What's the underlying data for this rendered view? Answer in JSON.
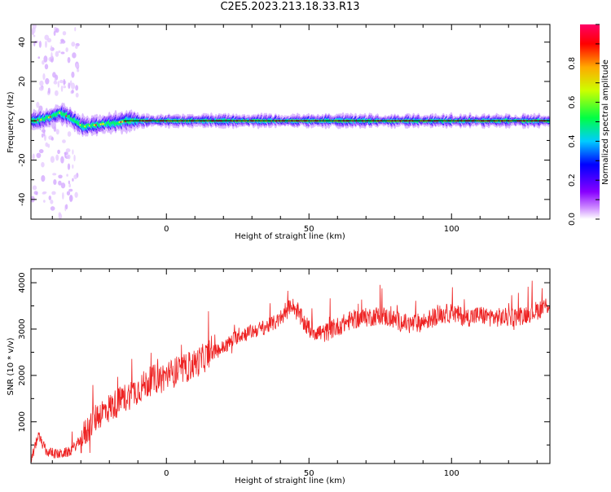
{
  "title": "C2E5.2023.213.18.33.R13",
  "chart_data": [
    {
      "type": "heatmap",
      "xlabel": "Height of straight line (km)",
      "ylabel": "Frequency (Hz)",
      "xlim": [
        -47.5,
        134.5
      ],
      "ylim": [
        -50,
        49
      ],
      "xticks": [
        0,
        50,
        100
      ],
      "yticks": [
        -40,
        -20,
        0,
        20,
        40
      ],
      "grid": false,
      "colorbar": {
        "label": "Normalized spectral amplitude",
        "range": [
          0,
          1
        ],
        "ticks": [
          0.0,
          0.2,
          0.4,
          0.6,
          0.8
        ],
        "colormap": [
          "#ffffff",
          "#8800ff",
          "#0000ff",
          "#00ffff",
          "#00ff00",
          "#ffff00",
          "#ff0000",
          "#ff0080"
        ]
      },
      "ridge": {
        "frequency_hz": 0,
        "wander": [
          {
            "x": -46,
            "y": 0
          },
          {
            "x": -42,
            "y": 1
          },
          {
            "x": -37,
            "y": 4
          },
          {
            "x": -33,
            "y": 1
          },
          {
            "x": -29,
            "y": -3
          },
          {
            "x": -24,
            "y": -2
          },
          {
            "x": -18,
            "y": -1
          },
          {
            "x": -12,
            "y": 0
          },
          {
            "x": 0,
            "y": 0
          },
          {
            "x": 134,
            "y": 0
          }
        ]
      }
    },
    {
      "type": "line",
      "xlabel": "Height of straight line (km)",
      "ylabel": "SNR (10 * v/v)",
      "xlim": [
        -47.5,
        134.5
      ],
      "ylim": [
        100,
        4300
      ],
      "xticks": [
        0,
        50,
        100
      ],
      "yticks": [
        1000,
        2000,
        3000,
        4000
      ],
      "grid": false,
      "series": [
        {
          "color": "#ee2222",
          "points": [
            {
              "x": -47.5,
              "y": 150
            },
            {
              "x": -45,
              "y": 700
            },
            {
              "x": -42,
              "y": 350
            },
            {
              "x": -38,
              "y": 300
            },
            {
              "x": -34,
              "y": 350
            },
            {
              "x": -30,
              "y": 600
            },
            {
              "x": -27,
              "y": 900
            },
            {
              "x": -24,
              "y": 1150
            },
            {
              "x": -20,
              "y": 1300
            },
            {
              "x": -15,
              "y": 1500
            },
            {
              "x": -10,
              "y": 1700
            },
            {
              "x": -5,
              "y": 1900
            },
            {
              "x": 0,
              "y": 2000
            },
            {
              "x": 5,
              "y": 2100
            },
            {
              "x": 10,
              "y": 2250
            },
            {
              "x": 15,
              "y": 2450
            },
            {
              "x": 20,
              "y": 2600
            },
            {
              "x": 25,
              "y": 2850
            },
            {
              "x": 30,
              "y": 2950
            },
            {
              "x": 35,
              "y": 3050
            },
            {
              "x": 40,
              "y": 3200
            },
            {
              "x": 44,
              "y": 3550
            },
            {
              "x": 47,
              "y": 3250
            },
            {
              "x": 50,
              "y": 3000
            },
            {
              "x": 55,
              "y": 2900
            },
            {
              "x": 60,
              "y": 3050
            },
            {
              "x": 65,
              "y": 3200
            },
            {
              "x": 70,
              "y": 3250
            },
            {
              "x": 75,
              "y": 3300
            },
            {
              "x": 80,
              "y": 3200
            },
            {
              "x": 85,
              "y": 3100
            },
            {
              "x": 90,
              "y": 3150
            },
            {
              "x": 95,
              "y": 3300
            },
            {
              "x": 100,
              "y": 3350
            },
            {
              "x": 105,
              "y": 3250
            },
            {
              "x": 110,
              "y": 3300
            },
            {
              "x": 115,
              "y": 3250
            },
            {
              "x": 120,
              "y": 3250
            },
            {
              "x": 125,
              "y": 3300
            },
            {
              "x": 130,
              "y": 3400
            },
            {
              "x": 134.5,
              "y": 3550
            }
          ]
        }
      ]
    }
  ]
}
